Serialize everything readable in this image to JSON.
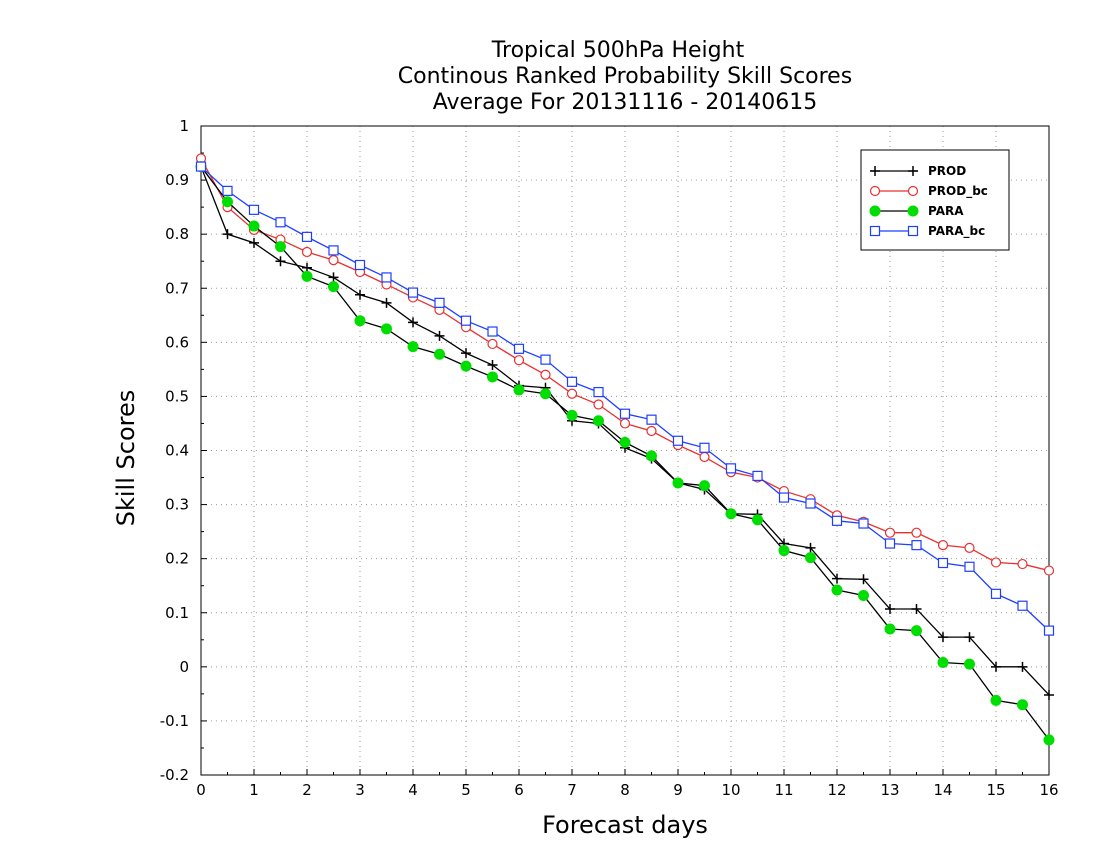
{
  "chart_data": {
    "type": "line",
    "title_lines": [
      "Tropical 500hPa Height",
      "Continous Ranked Probability Skill Scores",
      "Average For 20131116 - 20140615"
    ],
    "xlabel": "Forecast days",
    "ylabel": "Skill Scores",
    "xlim": [
      0,
      16
    ],
    "ylim": [
      -0.2,
      1
    ],
    "xticks": [
      0,
      1,
      2,
      3,
      4,
      5,
      6,
      7,
      8,
      9,
      10,
      11,
      12,
      13,
      14,
      15,
      16
    ],
    "yticks": [
      -0.2,
      -0.1,
      0,
      0.1,
      0.2,
      0.3,
      0.4,
      0.5,
      0.6,
      0.7,
      0.8,
      0.9,
      1
    ],
    "ytick_labels": [
      "-0.2",
      "-0.1",
      "0",
      "0.1",
      "0.2",
      "0.3",
      "0.4",
      "0.5",
      "0.6",
      "0.7",
      "0.8",
      "0.9",
      "1"
    ],
    "grid": "dotted",
    "legend_position": "top-right",
    "x": [
      0,
      0.5,
      1,
      1.5,
      2,
      2.5,
      3,
      3.5,
      4,
      4.5,
      5,
      5.5,
      6,
      6.5,
      7,
      7.5,
      8,
      8.5,
      9,
      9.5,
      10,
      10.5,
      11,
      11.5,
      12,
      12.5,
      13,
      13.5,
      14,
      14.5,
      15,
      15.5,
      16
    ],
    "series": [
      {
        "name": "PROD",
        "color": "#000000",
        "marker": "plus",
        "values": [
          0.925,
          0.8,
          0.784,
          0.75,
          0.738,
          0.72,
          0.688,
          0.673,
          0.637,
          0.612,
          0.58,
          0.558,
          0.52,
          0.516,
          0.455,
          0.45,
          0.405,
          0.385,
          0.34,
          0.328,
          0.283,
          0.282,
          0.228,
          0.22,
          0.163,
          0.162,
          0.107,
          0.107,
          0.055,
          0.055,
          0.0,
          0.0,
          -0.052
        ]
      },
      {
        "name": "PROD_bc",
        "color": "#e83030",
        "marker": "circle-open",
        "values": [
          0.94,
          0.85,
          0.808,
          0.79,
          0.767,
          0.752,
          0.73,
          0.707,
          0.683,
          0.66,
          0.628,
          0.597,
          0.567,
          0.54,
          0.505,
          0.485,
          0.45,
          0.436,
          0.41,
          0.388,
          0.36,
          0.35,
          0.325,
          0.31,
          0.28,
          0.268,
          0.248,
          0.248,
          0.225,
          0.22,
          0.193,
          0.19,
          0.178
        ]
      },
      {
        "name": "PARA",
        "color": "#00dd00",
        "marker": "circle-filled",
        "values": [
          0.925,
          0.86,
          0.815,
          0.777,
          0.722,
          0.703,
          0.64,
          0.625,
          0.592,
          0.578,
          0.556,
          0.536,
          0.512,
          0.505,
          0.465,
          0.455,
          0.415,
          0.39,
          0.34,
          0.335,
          0.283,
          0.272,
          0.215,
          0.202,
          0.142,
          0.132,
          0.07,
          0.067,
          0.008,
          0.005,
          -0.062,
          -0.07,
          -0.135
        ]
      },
      {
        "name": "PARA_bc",
        "color": "#1f3fff",
        "marker": "square-open",
        "values": [
          0.925,
          0.88,
          0.845,
          0.822,
          0.795,
          0.77,
          0.743,
          0.72,
          0.692,
          0.673,
          0.64,
          0.62,
          0.588,
          0.568,
          0.527,
          0.508,
          0.468,
          0.457,
          0.418,
          0.405,
          0.367,
          0.353,
          0.313,
          0.302,
          0.27,
          0.265,
          0.228,
          0.225,
          0.192,
          0.185,
          0.135,
          0.113,
          0.067
        ]
      }
    ]
  }
}
